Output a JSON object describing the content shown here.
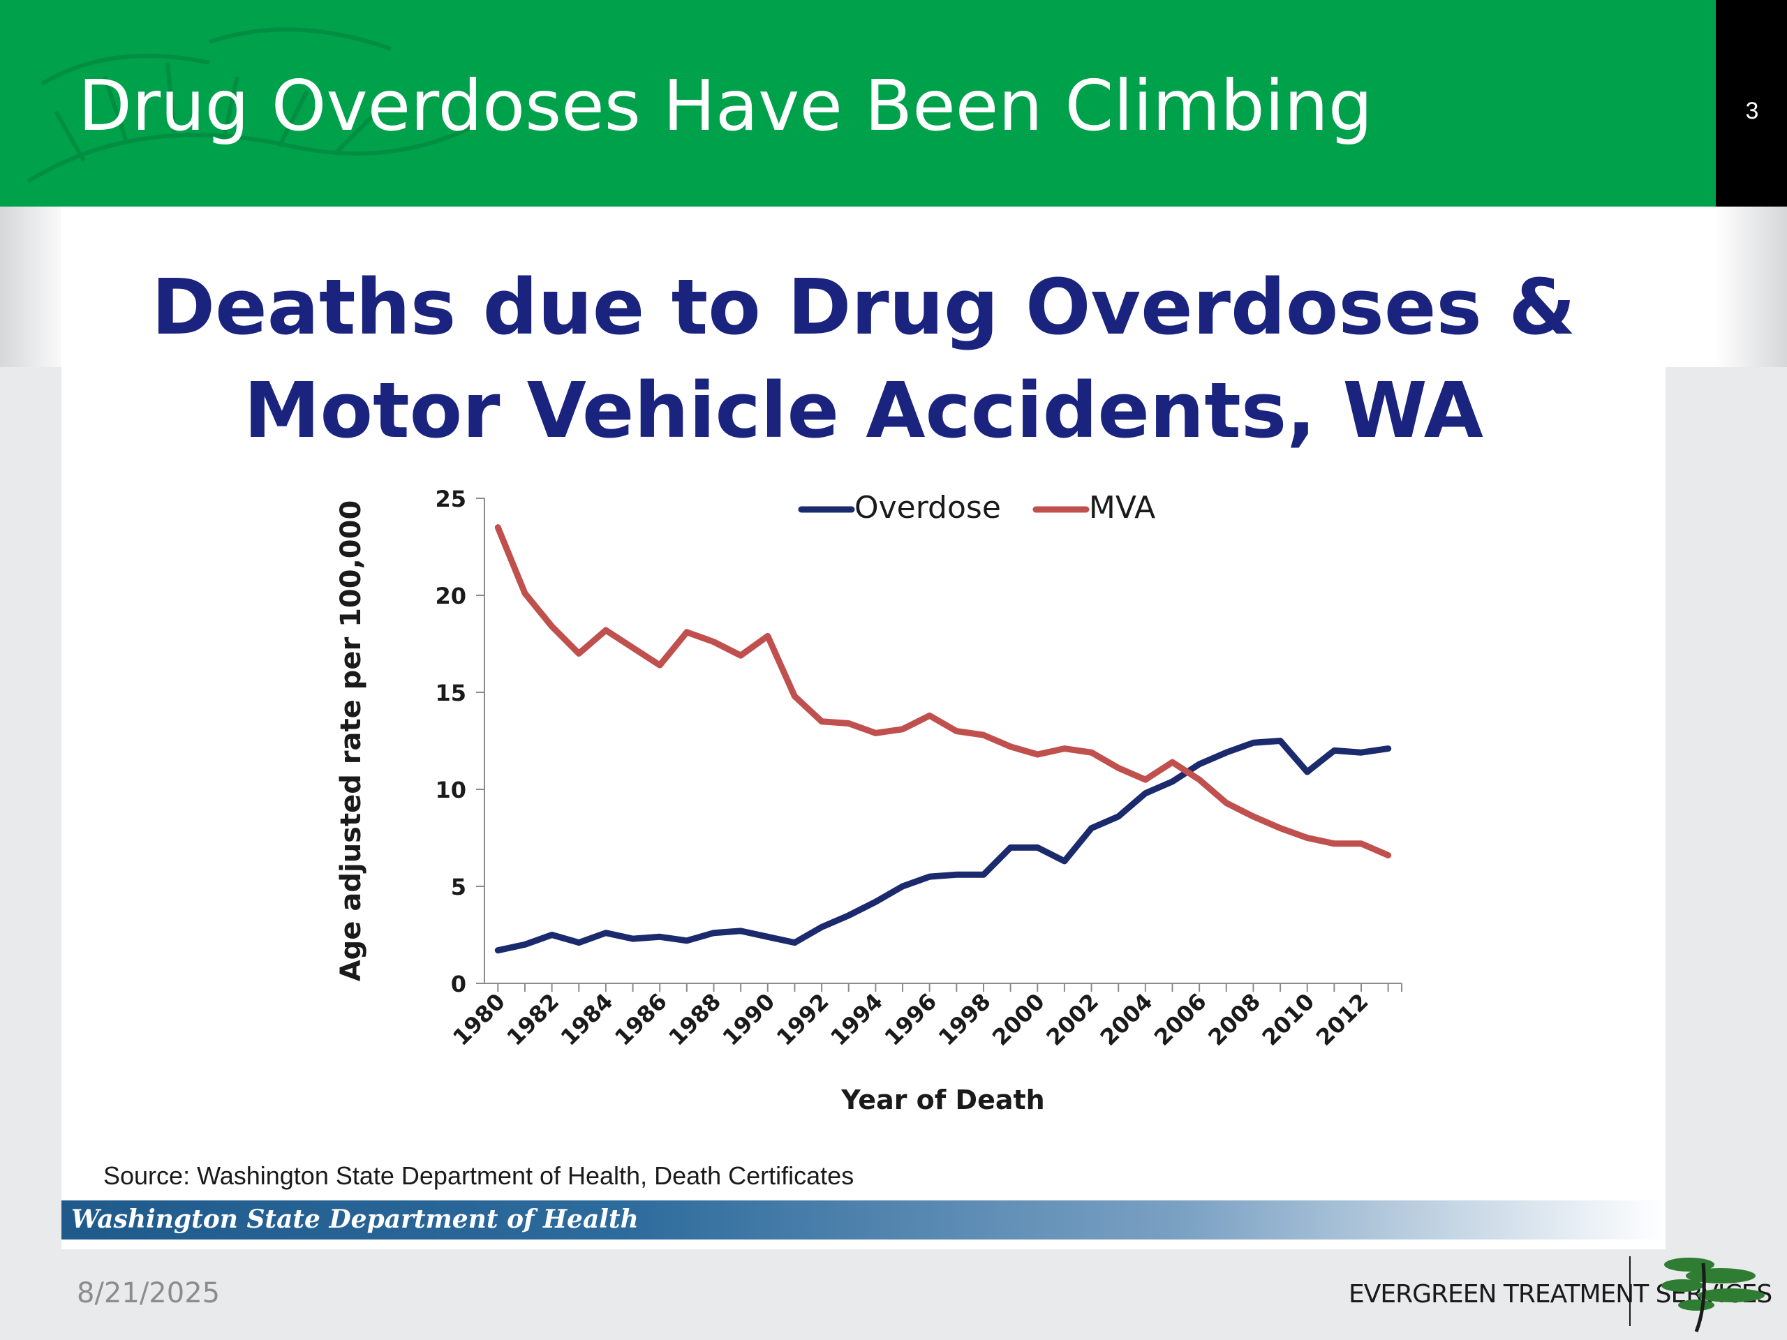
{
  "slide": {
    "title": "Drug Overdoses Have Been Climbing",
    "page_number": "3",
    "date": "8/21/2025",
    "organization": "EVERGREEN TREATMENT SERVICES",
    "source_text": "Source: Washington State Department of Health, Death Certificates",
    "banner_text": "Washington State Department of Health",
    "colors": {
      "header_green": "#00a14b",
      "title_navy": "#1a237e",
      "banner_blue": "#2d6b9c"
    }
  },
  "chart_data": {
    "type": "line",
    "title": "Deaths due to Drug Overdoses & Motor Vehicle Accidents, WA",
    "title_lines": [
      "Deaths due to Drug Overdoses &",
      "Motor Vehicle Accidents, WA"
    ],
    "xlabel": "Year of Death",
    "ylabel": "Age adjusted rate per 100,000",
    "ylim": [
      0,
      25
    ],
    "yticks": [
      0,
      5,
      10,
      15,
      20,
      25
    ],
    "xtick_labels": [
      "1980",
      "1982",
      "1984",
      "1986",
      "1988",
      "1990",
      "1992",
      "1994",
      "1996",
      "1998",
      "2000",
      "2002",
      "2004",
      "2006",
      "2008",
      "2010",
      "2012"
    ],
    "x": [
      1980,
      1981,
      1982,
      1983,
      1984,
      1985,
      1986,
      1987,
      1988,
      1989,
      1990,
      1991,
      1992,
      1993,
      1994,
      1995,
      1996,
      1997,
      1998,
      1999,
      2000,
      2001,
      2002,
      2003,
      2004,
      2005,
      2006,
      2007,
      2008,
      2009,
      2010,
      2011,
      2012,
      2013
    ],
    "grid": false,
    "legend": "top",
    "series": [
      {
        "name": "Overdose",
        "color": "#1a2a6c",
        "values": [
          1.7,
          2.0,
          2.5,
          2.1,
          2.6,
          2.3,
          2.4,
          2.2,
          2.6,
          2.7,
          2.4,
          2.1,
          2.9,
          3.5,
          4.2,
          5.0,
          5.5,
          5.6,
          5.6,
          7.0,
          7.0,
          6.3,
          8.0,
          8.6,
          9.8,
          10.4,
          11.3,
          11.9,
          12.4,
          12.5,
          10.9,
          12.0,
          11.9,
          12.1
        ]
      },
      {
        "name": "MVA",
        "color": "#c0504d",
        "values": [
          23.5,
          20.1,
          18.4,
          17.0,
          18.2,
          17.3,
          16.4,
          18.1,
          17.6,
          16.9,
          17.9,
          14.8,
          13.5,
          13.4,
          12.9,
          13.1,
          13.8,
          13.0,
          12.8,
          12.2,
          11.8,
          12.1,
          11.9,
          11.1,
          10.5,
          11.4,
          10.5,
          9.3,
          8.6,
          8.0,
          7.5,
          7.2,
          7.2,
          6.6
        ]
      }
    ]
  }
}
